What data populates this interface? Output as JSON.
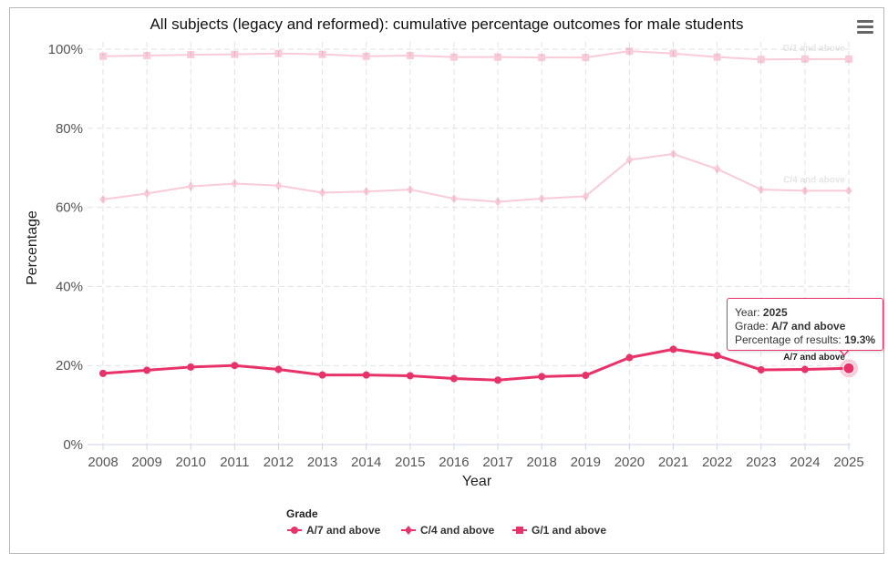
{
  "chart_data": {
    "type": "line",
    "title": "All subjects (legacy and reformed): cumulative percentage outcomes for male students",
    "xlabel": "Year",
    "ylabel": "Percentage",
    "ylim": [
      0,
      100
    ],
    "y_ticks": [
      0,
      20,
      40,
      60,
      80,
      100
    ],
    "y_tick_labels": [
      "0%",
      "20%",
      "40%",
      "60%",
      "80%",
      "100%"
    ],
    "categories": [
      "2008",
      "2009",
      "2010",
      "2011",
      "2012",
      "2013",
      "2014",
      "2015",
      "2016",
      "2017",
      "2018",
      "2019",
      "2020",
      "2021",
      "2022",
      "2023",
      "2024",
      "2025"
    ],
    "grid": true,
    "legend_title": "Grade",
    "legend_position": "bottom-center",
    "series": [
      {
        "name": "A/7 and above",
        "end_label": "A/7 and above",
        "color": "#e8336a",
        "marker": "circle",
        "faded": false,
        "values": [
          18.0,
          18.8,
          19.6,
          20.0,
          19.0,
          17.6,
          17.6,
          17.4,
          16.7,
          16.3,
          17.2,
          17.5,
          22.0,
          24.1,
          22.5,
          18.9,
          19.0,
          19.3
        ]
      },
      {
        "name": "C/4 and above",
        "end_label": "C/4 and above",
        "color": "#e8336a",
        "marker": "diamond",
        "faded": true,
        "values": [
          62.0,
          63.5,
          65.3,
          66.0,
          65.5,
          63.7,
          64.0,
          64.5,
          62.2,
          61.4,
          62.2,
          62.8,
          72.0,
          73.5,
          69.7,
          64.5,
          64.2,
          64.2
        ]
      },
      {
        "name": "G/1 and above",
        "end_label": "G/1 and above",
        "color": "#e8336a",
        "marker": "square",
        "faded": true,
        "values": [
          98.2,
          98.4,
          98.6,
          98.7,
          98.9,
          98.7,
          98.2,
          98.4,
          98.0,
          98.0,
          97.9,
          97.9,
          99.5,
          98.9,
          98.0,
          97.4,
          97.5,
          97.5
        ]
      }
    ],
    "tooltip": {
      "year_label": "Year: ",
      "year": "2025",
      "grade_label": "Grade: ",
      "grade": "A/7 and above",
      "pct_label": "Percentage of results: ",
      "pct": "19.3%"
    }
  },
  "menu_icon": "hamburger-menu-icon"
}
